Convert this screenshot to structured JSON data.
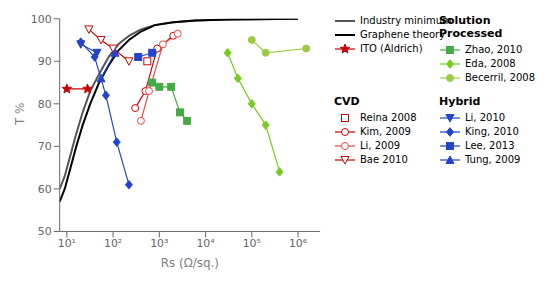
{
  "chart_data": {
    "type": "line",
    "x_label": "Rs (Ω/sq.)",
    "y_label": "T %",
    "log": "x",
    "grid": false,
    "legend": "right",
    "xlim": [
      7,
      3000000
    ],
    "ylim": [
      50,
      100
    ],
    "xticks": [
      {
        "value": 10,
        "label": "10¹"
      },
      {
        "value": 100,
        "label": "10²"
      },
      {
        "value": 1000,
        "label": "10³"
      },
      {
        "value": 10000,
        "label": "10⁴"
      },
      {
        "value": 100000,
        "label": "10⁵"
      },
      {
        "value": 1000000,
        "label": "10⁶"
      }
    ],
    "yticks": [
      50,
      60,
      70,
      80,
      90,
      100
    ],
    "series": [
      {
        "name": "Industry minimum",
        "group": null,
        "color": "#555555",
        "marker": "none",
        "line_style": "solid",
        "x": [
          7,
          9,
          12,
          16,
          22,
          32,
          50,
          80,
          130,
          220,
          400,
          800,
          2000,
          6000,
          30000,
          1000000
        ],
        "values": [
          60,
          63,
          68,
          73,
          78,
          83,
          87,
          91,
          94,
          96,
          97.5,
          98.5,
          99.2,
          99.6,
          99.8,
          100
        ]
      },
      {
        "name": "Graphene theory",
        "group": null,
        "color": "#000000",
        "marker": "none",
        "line_style": "solid",
        "x": [
          7,
          9,
          12,
          16,
          22,
          32,
          50,
          80,
          130,
          220,
          400,
          800,
          2000,
          6000,
          30000,
          1000000
        ],
        "values": [
          57,
          60,
          65,
          70,
          75,
          80,
          85,
          89,
          92.5,
          95,
          97,
          98.5,
          99.2,
          99.6,
          99.8,
          100
        ]
      },
      {
        "name": "ITO (Aldrich)",
        "group": null,
        "color": "#cc0000",
        "marker": "star",
        "line_style": "solid",
        "x": [
          10,
          28
        ],
        "values": [
          83.5,
          83.5
        ]
      },
      {
        "name": "Reina 2008",
        "group": "CVD",
        "color": "#cc0000",
        "marker": "square-open",
        "line_style": "none",
        "x": [
          550
        ],
        "values": [
          90
        ]
      },
      {
        "name": "Kim, 2009",
        "group": "CVD",
        "color": "#cc0000",
        "marker": "circle-open",
        "line_style": "solid",
        "x": [
          300,
          500,
          900,
          2000
        ],
        "values": [
          79,
          83,
          93,
          96
        ]
      },
      {
        "name": "Li, 2009",
        "group": "CVD",
        "color": "#ee4444",
        "marker": "circle-open",
        "line_style": "solid",
        "x": [
          400,
          600,
          1200,
          2500
        ],
        "values": [
          76,
          83,
          94,
          96.5
        ]
      },
      {
        "name": "Bae 2010",
        "group": "CVD",
        "color": "#cc0000",
        "marker": "triangle-down-open",
        "line_style": "solid",
        "x": [
          30,
          55,
          100,
          220
        ],
        "values": [
          97.5,
          95,
          93,
          90
        ]
      },
      {
        "name": "Zhao, 2010",
        "group": "Solution Processed",
        "color": "#44aa44",
        "marker": "square",
        "line_style": "solid",
        "x": [
          700,
          1000,
          1800,
          2800,
          4000
        ],
        "values": [
          85,
          84,
          84,
          78,
          76
        ]
      },
      {
        "name": "Eda, 2008",
        "group": "Solution Processed",
        "color": "#77cc22",
        "marker": "diamond",
        "line_style": "solid",
        "x": [
          30000,
          50000,
          100000,
          200000,
          400000
        ],
        "values": [
          92,
          86,
          80,
          75,
          64
        ]
      },
      {
        "name": "Becerril, 2008",
        "group": "Solution Processed",
        "color": "#99cc44",
        "marker": "circle",
        "line_style": "solid",
        "x": [
          100000,
          200000,
          1500000
        ],
        "values": [
          95,
          92,
          93
        ]
      },
      {
        "name": "Li, 2010",
        "group": "Hybrid",
        "color": "#2244cc",
        "marker": "triangle-down",
        "line_style": "solid",
        "x": [
          20,
          45
        ],
        "values": [
          94,
          92
        ]
      },
      {
        "name": "King, 2010",
        "group": "Hybrid",
        "color": "#2244cc",
        "marker": "diamond",
        "line_style": "solid",
        "x": [
          20,
          40,
          70,
          120,
          220
        ],
        "values": [
          94.5,
          91,
          82,
          71,
          61
        ]
      },
      {
        "name": "Lee, 2013",
        "group": "Hybrid",
        "color": "#2244cc",
        "marker": "square",
        "line_style": "solid",
        "x": [
          350,
          700
        ],
        "values": [
          91,
          92
        ]
      },
      {
        "name": "Tung, 2009",
        "group": "Hybrid",
        "color": "#2244cc",
        "marker": "triangle",
        "line_style": "solid",
        "x": [
          55,
          110
        ],
        "values": [
          86,
          92
        ]
      }
    ]
  }
}
